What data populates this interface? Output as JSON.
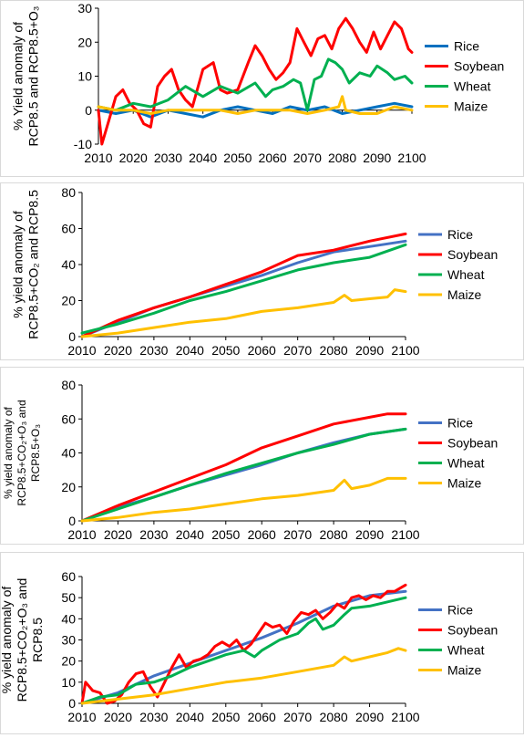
{
  "chart_data": [
    {
      "type": "line",
      "ylabel": "% Yield anomaly of RCP8.5 and RCP8.5+O3",
      "ylim": [
        -10,
        30
      ],
      "yticks": [
        -10,
        0,
        10,
        20,
        30
      ],
      "xlim": [
        2010,
        2100
      ],
      "xticks": [
        2010,
        2020,
        2030,
        2040,
        2050,
        2060,
        2070,
        2080,
        2090,
        2100
      ],
      "grid": false,
      "legend": "right",
      "series": [
        {
          "name": "Rice",
          "color": "#0070C0",
          "x": [
            2010,
            2015,
            2020,
            2025,
            2030,
            2035,
            2040,
            2045,
            2050,
            2055,
            2060,
            2065,
            2070,
            2075,
            2080,
            2085,
            2090,
            2095,
            2100
          ],
          "y": [
            0,
            -1,
            0,
            -2,
            0,
            -1,
            -2,
            0,
            1,
            0,
            -1,
            1,
            0,
            1,
            -1,
            0,
            1,
            2,
            1
          ]
        },
        {
          "name": "Soybean",
          "color": "#FF0000",
          "x": [
            2010,
            2011,
            2013,
            2015,
            2017,
            2019,
            2021,
            2023,
            2025,
            2027,
            2029,
            2031,
            2033,
            2035,
            2037,
            2040,
            2043,
            2045,
            2047,
            2050,
            2053,
            2055,
            2057,
            2059,
            2061,
            2063,
            2065,
            2067,
            2069,
            2071,
            2073,
            2075,
            2077,
            2079,
            2081,
            2083,
            2085,
            2087,
            2089,
            2091,
            2093,
            2095,
            2097,
            2099,
            2100
          ],
          "y": [
            0,
            -10,
            -3,
            4,
            6,
            2,
            0,
            -4,
            -5,
            7,
            10,
            12,
            6,
            3,
            1,
            12,
            14,
            6,
            5,
            6,
            14,
            19,
            16,
            12,
            9,
            11,
            14,
            24,
            20,
            16,
            21,
            22,
            18,
            24,
            27,
            24,
            20,
            17,
            23,
            18,
            22,
            26,
            24,
            18,
            17
          ]
        },
        {
          "name": "Wheat",
          "color": "#00B050",
          "x": [
            2010,
            2015,
            2020,
            2025,
            2030,
            2035,
            2040,
            2045,
            2050,
            2055,
            2058,
            2060,
            2063,
            2066,
            2068,
            2070,
            2072,
            2074,
            2076,
            2078,
            2080,
            2082,
            2085,
            2088,
            2090,
            2093,
            2095,
            2098,
            2100
          ],
          "y": [
            1,
            0,
            2,
            1,
            3,
            7,
            4,
            7,
            5,
            8,
            4,
            6,
            7,
            9,
            8,
            0,
            9,
            10,
            15,
            14,
            12,
            8,
            11,
            10,
            13,
            11,
            9,
            10,
            8
          ]
        },
        {
          "name": "Maize",
          "color": "#FFC000",
          "x": [
            2010,
            2015,
            2020,
            2025,
            2030,
            2035,
            2040,
            2045,
            2050,
            2055,
            2060,
            2065,
            2070,
            2075,
            2079,
            2080,
            2081,
            2085,
            2090,
            2095,
            2100
          ],
          "y": [
            1,
            0,
            0,
            -1,
            0,
            0,
            0,
            0,
            -1,
            0,
            0,
            0,
            -1,
            0,
            1,
            4,
            0,
            -1,
            -1,
            1,
            0
          ]
        }
      ]
    },
    {
      "type": "line",
      "ylabel": "% yield anomaly of RCP8.5+CO2 and RCP8.5",
      "ylim": [
        0,
        80
      ],
      "yticks": [
        0,
        20,
        40,
        60,
        80
      ],
      "xlim": [
        2010,
        2100
      ],
      "xticks": [
        2010,
        2020,
        2030,
        2040,
        2050,
        2060,
        2070,
        2080,
        2090,
        2100
      ],
      "grid": false,
      "legend": "right",
      "series": [
        {
          "name": "Rice",
          "color": "#4472C4",
          "x": [
            2010,
            2020,
            2030,
            2040,
            2050,
            2060,
            2070,
            2080,
            2090,
            2100
          ],
          "y": [
            0,
            8,
            16,
            22,
            28,
            34,
            41,
            47,
            50,
            53
          ]
        },
        {
          "name": "Soybean",
          "color": "#FF0000",
          "x": [
            2010,
            2020,
            2030,
            2040,
            2050,
            2060,
            2070,
            2080,
            2090,
            2100
          ],
          "y": [
            0,
            9,
            16,
            22,
            29,
            36,
            45,
            48,
            53,
            57
          ]
        },
        {
          "name": "Wheat",
          "color": "#00B050",
          "x": [
            2010,
            2020,
            2030,
            2040,
            2050,
            2060,
            2070,
            2080,
            2090,
            2100
          ],
          "y": [
            2,
            7,
            13,
            20,
            25,
            31,
            37,
            41,
            44,
            51
          ]
        },
        {
          "name": "Maize",
          "color": "#FFC000",
          "x": [
            2010,
            2020,
            2030,
            2040,
            2050,
            2060,
            2070,
            2080,
            2083,
            2085,
            2090,
            2095,
            2097,
            2100
          ],
          "y": [
            0,
            2,
            5,
            8,
            10,
            14,
            16,
            19,
            23,
            20,
            21,
            22,
            26,
            25
          ]
        }
      ]
    },
    {
      "type": "line",
      "ylabel": "% yield anomaly of RCP8.5+CO2+O3 and RCP8.5+O3",
      "ylim": [
        0,
        80
      ],
      "yticks": [
        0,
        20,
        40,
        60,
        80
      ],
      "xlim": [
        2010,
        2100
      ],
      "xticks": [
        2010,
        2020,
        2030,
        2040,
        2050,
        2060,
        2070,
        2080,
        2090,
        2100
      ],
      "grid": false,
      "legend": "right",
      "series": [
        {
          "name": "Rice",
          "color": "#4472C4",
          "x": [
            2010,
            2020,
            2030,
            2040,
            2050,
            2060,
            2070,
            2080,
            2090,
            2100
          ],
          "y": [
            0,
            8,
            14,
            21,
            27,
            33,
            40,
            46,
            51,
            54
          ]
        },
        {
          "name": "Soybean",
          "color": "#FF0000",
          "x": [
            2010,
            2020,
            2030,
            2040,
            2050,
            2060,
            2070,
            2080,
            2090,
            2095,
            2100
          ],
          "y": [
            0,
            9,
            17,
            25,
            33,
            43,
            50,
            57,
            61,
            63,
            63
          ]
        },
        {
          "name": "Wheat",
          "color": "#00B050",
          "x": [
            2010,
            2020,
            2030,
            2040,
            2050,
            2060,
            2070,
            2080,
            2090,
            2100
          ],
          "y": [
            0,
            7,
            14,
            21,
            28,
            34,
            40,
            45,
            51,
            54
          ]
        },
        {
          "name": "Maize",
          "color": "#FFC000",
          "x": [
            2010,
            2020,
            2030,
            2040,
            2050,
            2060,
            2070,
            2080,
            2083,
            2085,
            2090,
            2095,
            2100
          ],
          "y": [
            0,
            2,
            5,
            7,
            10,
            13,
            15,
            18,
            24,
            19,
            21,
            25,
            25
          ]
        }
      ]
    },
    {
      "type": "line",
      "ylabel": "% yield anomaly of RCP8.5+CO2+O3 and RCP8.5",
      "ylim": [
        0,
        60
      ],
      "yticks": [
        0,
        10,
        20,
        30,
        40,
        50,
        60
      ],
      "xlim": [
        2010,
        2100
      ],
      "xticks": [
        2010,
        2020,
        2030,
        2040,
        2050,
        2060,
        2070,
        2080,
        2090,
        2100
      ],
      "grid": false,
      "legend": "right",
      "series": [
        {
          "name": "Rice",
          "color": "#4472C4",
          "x": [
            2010,
            2020,
            2030,
            2040,
            2050,
            2060,
            2070,
            2080,
            2090,
            2100
          ],
          "y": [
            0,
            5,
            13,
            19,
            25,
            31,
            38,
            46,
            51,
            53
          ]
        },
        {
          "name": "Soybean",
          "color": "#FF0000",
          "x": [
            2010,
            2011,
            2013,
            2015,
            2017,
            2019,
            2021,
            2023,
            2025,
            2027,
            2029,
            2031,
            2033,
            2035,
            2037,
            2039,
            2041,
            2043,
            2045,
            2047,
            2049,
            2051,
            2053,
            2055,
            2057,
            2059,
            2061,
            2063,
            2065,
            2067,
            2069,
            2071,
            2073,
            2075,
            2077,
            2079,
            2081,
            2083,
            2085,
            2087,
            2089,
            2091,
            2093,
            2095,
            2097,
            2099,
            2100
          ],
          "y": [
            0,
            10,
            6,
            5,
            0,
            1,
            4,
            10,
            14,
            15,
            8,
            3,
            10,
            17,
            23,
            17,
            20,
            21,
            23,
            27,
            29,
            27,
            30,
            25,
            28,
            33,
            38,
            36,
            37,
            33,
            39,
            43,
            42,
            44,
            40,
            43,
            47,
            45,
            50,
            51,
            49,
            51,
            50,
            53,
            53,
            55,
            56
          ]
        },
        {
          "name": "Wheat",
          "color": "#00B050",
          "x": [
            2010,
            2015,
            2020,
            2025,
            2030,
            2035,
            2040,
            2045,
            2050,
            2055,
            2058,
            2060,
            2065,
            2070,
            2073,
            2075,
            2077,
            2080,
            2083,
            2085,
            2090,
            2095,
            2100
          ],
          "y": [
            0,
            3,
            4,
            9,
            10,
            13,
            17,
            20,
            23,
            25,
            22,
            25,
            30,
            33,
            38,
            40,
            35,
            37,
            42,
            45,
            46,
            48,
            50
          ]
        },
        {
          "name": "Maize",
          "color": "#FFC000",
          "x": [
            2010,
            2020,
            2030,
            2040,
            2050,
            2060,
            2070,
            2080,
            2083,
            2085,
            2090,
            2095,
            2098,
            2100
          ],
          "y": [
            0,
            2,
            4,
            7,
            10,
            12,
            15,
            18,
            22,
            20,
            22,
            24,
            26,
            25
          ]
        }
      ]
    }
  ]
}
